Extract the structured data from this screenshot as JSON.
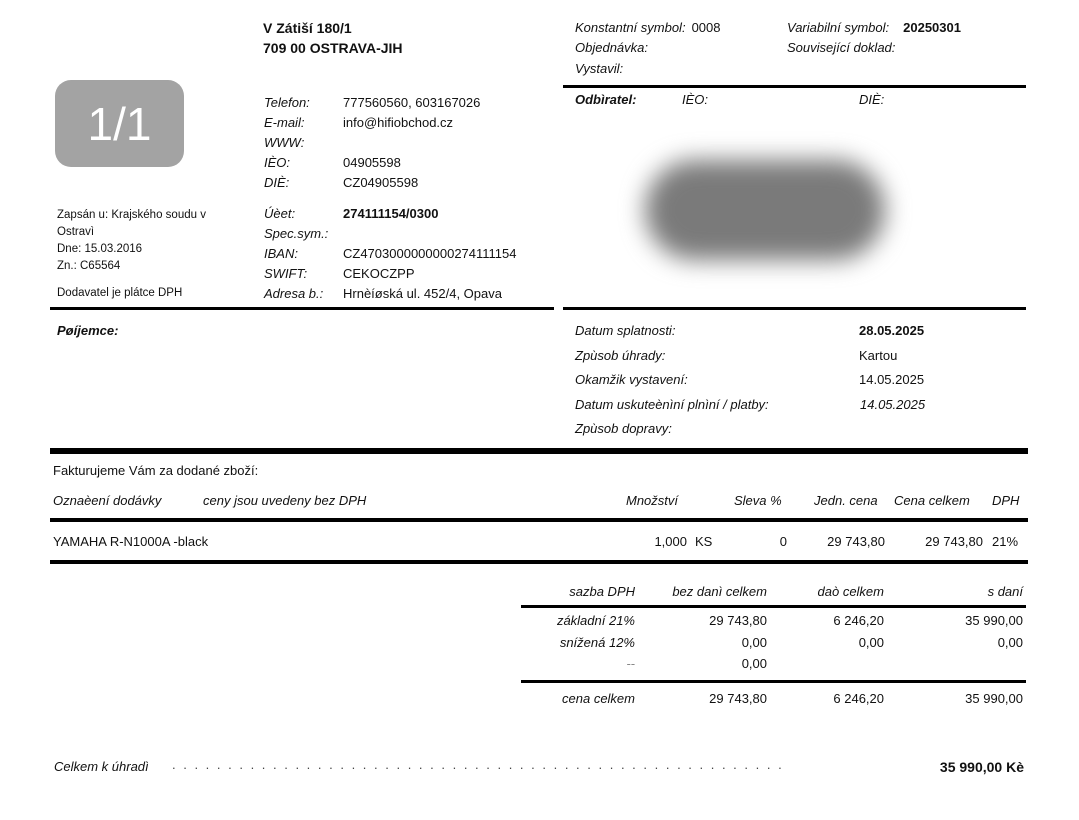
{
  "supplier": {
    "street": "V Zátiší 180/1",
    "city": "709 00 OSTRAVA-JIH",
    "contacts": [
      {
        "label": "Telefon:",
        "value": "777560560, 603167026"
      },
      {
        "label": "E-mail:",
        "value": "info@hifiobchod.cz"
      },
      {
        "label": "WWW:",
        "value": ""
      },
      {
        "label": "IÈO:",
        "value": "04905598"
      },
      {
        "label": "DIÈ:",
        "value": "CZ04905598"
      }
    ],
    "bank": [
      {
        "label": "Úèet:",
        "value": "274111154/0300"
      },
      {
        "label": "Spec.sym.:",
        "value": ""
      },
      {
        "label": "IBAN:",
        "value": "CZ4703000000000274111154"
      },
      {
        "label": "SWIFT:",
        "value": "CEKOCZPP"
      },
      {
        "label": "Adresa b.:",
        "value": "Hrnèíøská ul. 452/4, Opava"
      }
    ],
    "registry": [
      "Zapsán u: Krajského soudu v",
      "Ostravì",
      "Dne: 15.03.2016",
      "Zn.: C65564"
    ],
    "vat_payer": "Dodavatel je plátce DPH"
  },
  "page_badge": "1/1",
  "symbols": {
    "konstantni_label": "Konstantní symbol:",
    "konstantni_value": "0008",
    "variabilni_label": "Variabilní symbol:",
    "variabilni_value": "20250301",
    "objednavka_label": "Objednávka:",
    "souvisejici_label": "Související doklad:",
    "vystavil_label": "Vystavil:"
  },
  "customer": {
    "label": "Odbìratel:",
    "ico_label": "IÈO:",
    "dic_label": "DIÈ:"
  },
  "recipient_label": "Pøíjemce:",
  "dates": [
    {
      "label": "Datum splatnosti:",
      "value": "28.05.2025"
    },
    {
      "label": "Zpùsob úhrady:",
      "value": "Kartou"
    },
    {
      "label": "Okamžik vystavení:",
      "value": "14.05.2025"
    },
    {
      "label": "Datum uskuteènìní plnìní / platby:",
      "value": "14.05.2025"
    },
    {
      "label": "Zpùsob dopravy:",
      "value": ""
    }
  ],
  "items_intro": "Fakturujeme Vám za dodané zboží:",
  "items_header": {
    "name": "Oznaèení dodávky",
    "note": "ceny jsou uvedeny bez DPH",
    "qty": "Množství",
    "discount": "Sleva %",
    "unit_price": "Jedn. cena",
    "total": "Cena celkem",
    "vat": "DPH"
  },
  "items": [
    {
      "name": "YAMAHA R-N1000A -black",
      "qty": "1,000",
      "unit": "KS",
      "discount": "0",
      "unit_price": "29 743,80",
      "total": "29 743,80",
      "vat": "21%"
    }
  ],
  "vat_table": {
    "headers": [
      "sazba DPH",
      "bez danì  celkem",
      "daò celkem",
      "s daní"
    ],
    "rows": [
      [
        "základní 21%",
        "29 743,80",
        "6 246,20",
        "35 990,00"
      ],
      [
        "snížená 12%",
        "0,00",
        "0,00",
        "0,00"
      ],
      [
        "--",
        "0,00",
        "",
        ""
      ]
    ],
    "total": [
      "cena celkem",
      "29 743,80",
      "6 246,20",
      "35 990,00"
    ]
  },
  "grand_total": {
    "label": "Celkem k úhradì",
    "value": "35 990,00 Kè"
  }
}
